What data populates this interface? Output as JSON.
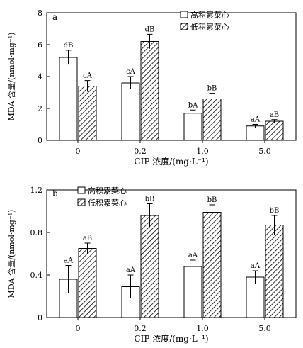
{
  "chart_data": [
    {
      "type": "bar",
      "panel_label": "a",
      "categories": [
        "0",
        "0.2",
        "1.0",
        "5.0"
      ],
      "xlabel": "CIP 浓度/(mg·L⁻¹)",
      "ylabel": "MDA 含量/(nmol·mg⁻¹)",
      "ylim": [
        0,
        8
      ],
      "yticks": [
        "0",
        "2",
        "4",
        "6",
        "8"
      ],
      "legend_position": "top-right",
      "series": [
        {
          "name": "高积累菜心",
          "pattern": "open",
          "values": [
            5.2,
            3.6,
            1.7,
            0.9
          ],
          "errors": [
            0.45,
            0.4,
            0.2,
            0.1
          ],
          "labels": [
            "dB",
            "cA",
            "bA",
            "aA"
          ]
        },
        {
          "name": "低积累菜心",
          "pattern": "hatched",
          "values": [
            3.4,
            6.2,
            2.6,
            1.2
          ],
          "errors": [
            0.35,
            0.45,
            0.35,
            0.1
          ],
          "labels": [
            "cA",
            "dB",
            "bB",
            "aB"
          ]
        }
      ]
    },
    {
      "type": "bar",
      "panel_label": "b",
      "categories": [
        "0",
        "0.2",
        "1.0",
        "5.0"
      ],
      "xlabel": "CIP 浓度/(mg·L⁻¹)",
      "ylabel": "MDA 含量/(nmol·mg⁻¹)",
      "ylim": [
        0,
        1.2
      ],
      "yticks": [
        "0",
        "0.4",
        "0.8",
        "1.2"
      ],
      "legend_position": "top-left",
      "series": [
        {
          "name": "高积累菜心",
          "pattern": "open",
          "values": [
            0.36,
            0.29,
            0.48,
            0.38
          ],
          "errors": [
            0.13,
            0.11,
            0.06,
            0.06
          ],
          "labels": [
            "aA",
            "aA",
            "aA",
            "aA"
          ]
        },
        {
          "name": "低积累菜心",
          "pattern": "hatched",
          "values": [
            0.65,
            0.96,
            0.99,
            0.87
          ],
          "errors": [
            0.05,
            0.11,
            0.07,
            0.09
          ],
          "labels": [
            "aB",
            "bB",
            "bB",
            "bB"
          ]
        }
      ]
    }
  ]
}
